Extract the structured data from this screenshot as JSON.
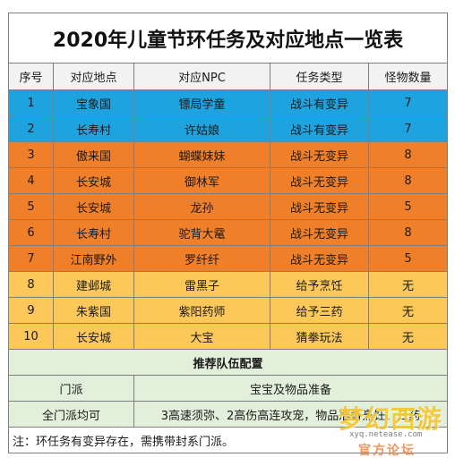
{
  "title": "2020年儿童节环任务及对应地点一览表",
  "headers": [
    "序号",
    "对应地点",
    "对应NPC",
    "任务类型",
    "怪物数量"
  ],
  "rows": [
    {
      "no": "1",
      "place": "宝象国",
      "npc": "镖局学童",
      "type": "战斗有变异",
      "count": "7"
    },
    {
      "no": "2",
      "place": "长寿村",
      "npc": "许姑娘",
      "type": "战斗有变异",
      "count": "7"
    },
    {
      "no": "3",
      "place": "傲来国",
      "npc": "蝴蝶妹妹",
      "type": "战斗无变异",
      "count": "8"
    },
    {
      "no": "4",
      "place": "长安城",
      "npc": "御林军",
      "type": "战斗无变异",
      "count": "8"
    },
    {
      "no": "5",
      "place": "长安城",
      "npc": "龙孙",
      "type": "战斗无变异",
      "count": "5"
    },
    {
      "no": "6",
      "place": "长寿村",
      "npc": "驼背大鼋",
      "type": "战斗无变异",
      "count": "8"
    },
    {
      "no": "7",
      "place": "江南野外",
      "npc": "罗纤纤",
      "type": "战斗无变异",
      "count": "5"
    },
    {
      "no": "8",
      "place": "建邺城",
      "npc": "雷黑子",
      "type": "给予烹饪",
      "count": "无"
    },
    {
      "no": "9",
      "place": "朱紫国",
      "npc": "紫阳药师",
      "type": "给予三药",
      "count": "无"
    },
    {
      "no": "10",
      "place": "长安城",
      "npc": "大宝",
      "type": "猜拳玩法",
      "count": "无"
    }
  ],
  "team": {
    "section_title": "推荐队伍配置",
    "row1_label": "门派",
    "row1_value": "宝宝及物品准备",
    "row2_label": "全门派均可",
    "row2_value": "3高速须弥、2高伤高连攻宠，物品准备烹饪、三药"
  },
  "note": "注：环任务有变异存在，需携带封系门派。",
  "watermark": {
    "mark": "梦幻西游",
    "url": "xyq.netease.com",
    "sub": "官方论坛"
  },
  "colors": {
    "blue_rows": "#1fa3df",
    "orange_rows": "#f07f2a",
    "yellow_rows": "#fcc85a",
    "green_rows": "#e2efda",
    "header_row": "#f2f2f2"
  }
}
